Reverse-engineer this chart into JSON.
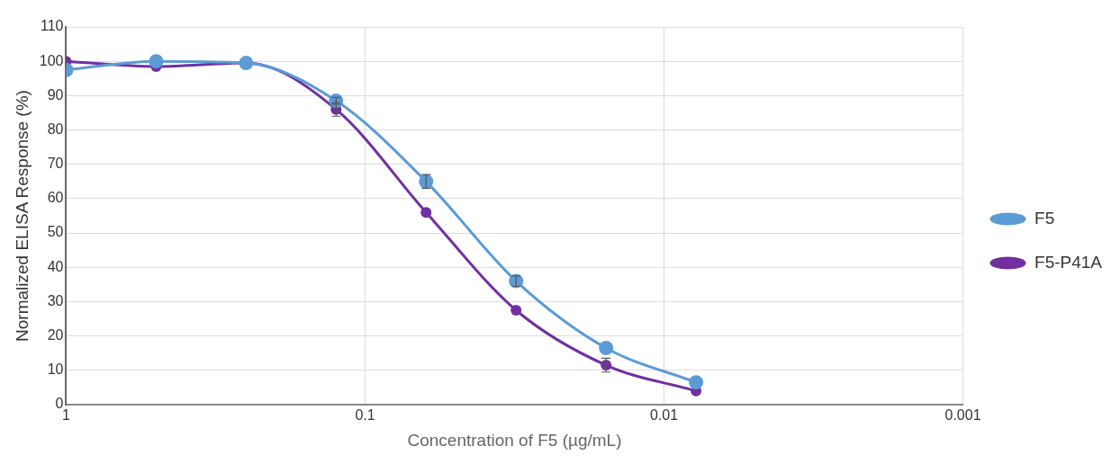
{
  "chart_data": {
    "type": "line",
    "xlabel": "Concentration of F5 (µg/mL)",
    "ylabel": "Normalized ELISA Response (%)",
    "x": [
      1,
      0.5,
      0.25,
      0.125,
      0.0625,
      0.03125,
      0.015625,
      0.0078125
    ],
    "log": "x",
    "xlim": [
      1,
      0.001
    ],
    "xticks": [
      1,
      0.1,
      0.01,
      0.001
    ],
    "ylim": [
      0,
      110
    ],
    "yticks": [
      0,
      10,
      20,
      30,
      40,
      50,
      60,
      70,
      80,
      90,
      100,
      110
    ],
    "grid": true,
    "legend": "right",
    "marker": "circle",
    "line_style": "solid",
    "series": [
      {
        "name": "F5",
        "color": "#5b9bd5",
        "values": [
          97.5,
          100,
          99.5,
          88.5,
          65,
          36,
          16.5,
          6.5
        ],
        "errors": [
          null,
          null,
          null,
          1,
          2,
          1.5,
          null,
          null
        ]
      },
      {
        "name": "F5-P41A",
        "color": "#7030a0",
        "values": [
          100,
          98.5,
          99.5,
          86,
          56,
          27.5,
          11.5,
          4
        ],
        "errors": [
          null,
          null,
          null,
          2,
          null,
          null,
          2,
          null
        ]
      }
    ]
  }
}
